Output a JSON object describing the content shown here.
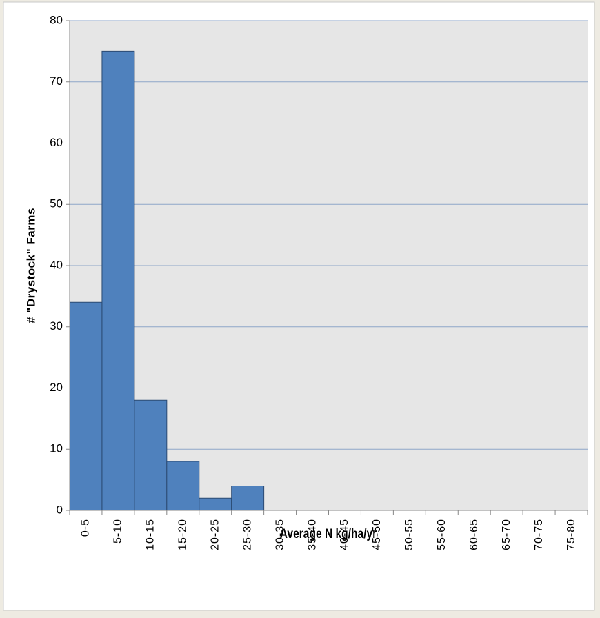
{
  "chart_data": {
    "type": "bar",
    "x_label": "Average N kg/ha/yr",
    "y_label": "# \"Drystock\" Farms",
    "categories": [
      "0-5",
      "5-10",
      "10-15",
      "15-20",
      "20-25",
      "25-30",
      "30-35",
      "35-40",
      "40-45",
      "45-50",
      "50-55",
      "55-60",
      "60-65",
      "65-70",
      "70-75",
      "75-80"
    ],
    "values": [
      34,
      75,
      18,
      8,
      2,
      4,
      0,
      0,
      0,
      0,
      0,
      0,
      0,
      0,
      0,
      0
    ],
    "color": "#4f81bd",
    "ylim": [
      0,
      80
    ],
    "yticks": [
      0,
      10,
      20,
      30,
      40,
      50,
      60,
      70,
      80
    ],
    "grid": true
  }
}
